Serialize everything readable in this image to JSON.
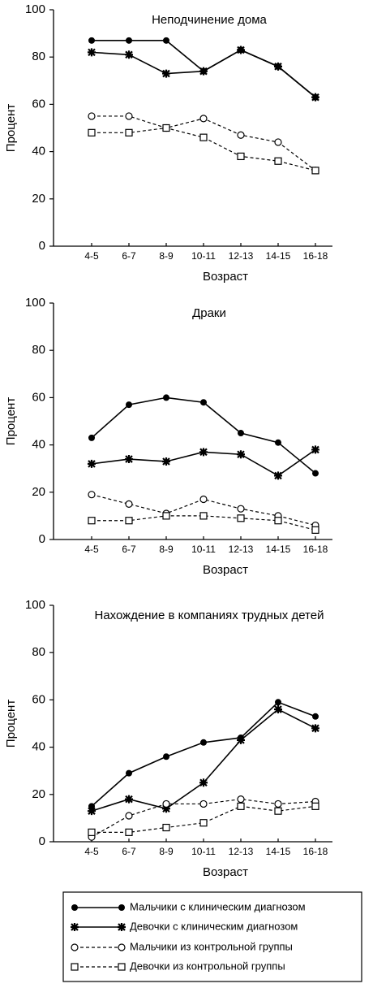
{
  "chart_data": [
    {
      "type": "line",
      "title": "Неподчинение дома",
      "xlabel": "Возраст",
      "ylabel": "Процент",
      "categories": [
        "4-5",
        "6-7",
        "8-9",
        "10-11",
        "12-13",
        "14-15",
        "16-18"
      ],
      "ylim": [
        0,
        100
      ],
      "yticks": [
        0,
        20,
        40,
        60,
        80,
        100
      ],
      "series": [
        {
          "name": "Мальчики с клиническим диагнозом",
          "color": "#000000",
          "marker": "filled-circle",
          "dashed": false,
          "values": [
            87,
            87,
            87,
            74,
            83,
            76,
            63
          ]
        },
        {
          "name": "Девочки с клиническим диагнозом",
          "color": "#000000",
          "marker": "asterisk",
          "dashed": false,
          "values": [
            82,
            81,
            73,
            74,
            83,
            76,
            63
          ]
        },
        {
          "name": "Мальчики из контрольной группы",
          "color": "#000000",
          "marker": "open-circle",
          "dashed": true,
          "values": [
            55,
            55,
            50,
            54,
            47,
            44,
            32
          ]
        },
        {
          "name": "Девочки из контрольной группы",
          "color": "#000000",
          "marker": "open-square",
          "dashed": true,
          "values": [
            48,
            48,
            50,
            46,
            38,
            36,
            32
          ]
        }
      ]
    },
    {
      "type": "line",
      "title": "Драки",
      "xlabel": "Возраст",
      "ylabel": "Процент",
      "categories": [
        "4-5",
        "6-7",
        "8-9",
        "10-11",
        "12-13",
        "14-15",
        "16-18"
      ],
      "ylim": [
        0,
        100
      ],
      "yticks": [
        0,
        20,
        40,
        60,
        80,
        100
      ],
      "series": [
        {
          "color": "#000000",
          "marker": "filled-circle",
          "dashed": false,
          "values": [
            43,
            57,
            60,
            58,
            45,
            41,
            28
          ]
        },
        {
          "color": "#000000",
          "marker": "asterisk",
          "dashed": false,
          "values": [
            32,
            34,
            33,
            37,
            36,
            27,
            38
          ]
        },
        {
          "color": "#000000",
          "marker": "open-circle",
          "dashed": true,
          "values": [
            19,
            15,
            11,
            17,
            13,
            10,
            6
          ]
        },
        {
          "color": "#000000",
          "marker": "open-square",
          "dashed": true,
          "values": [
            8,
            8,
            10,
            10,
            9,
            8,
            4
          ]
        }
      ]
    },
    {
      "type": "line",
      "title": "Нахождение в компаниях трудных детей",
      "xlabel": "Возраст",
      "ylabel": "Процент",
      "categories": [
        "4-5",
        "6-7",
        "8-9",
        "10-11",
        "12-13",
        "14-15",
        "16-18"
      ],
      "ylim": [
        0,
        100
      ],
      "yticks": [
        0,
        20,
        40,
        60,
        80,
        100
      ],
      "series": [
        {
          "color": "#000000",
          "marker": "filled-circle",
          "dashed": false,
          "values": [
            15,
            29,
            36,
            42,
            44,
            59,
            53
          ]
        },
        {
          "color": "#000000",
          "marker": "asterisk",
          "dashed": false,
          "values": [
            13,
            18,
            14,
            25,
            43,
            56,
            48
          ]
        },
        {
          "color": "#000000",
          "marker": "open-circle",
          "dashed": true,
          "values": [
            2,
            11,
            16,
            16,
            18,
            16,
            17
          ]
        },
        {
          "color": "#000000",
          "marker": "open-square",
          "dashed": true,
          "values": [
            4,
            4,
            6,
            8,
            15,
            13,
            15
          ]
        }
      ]
    }
  ]
}
